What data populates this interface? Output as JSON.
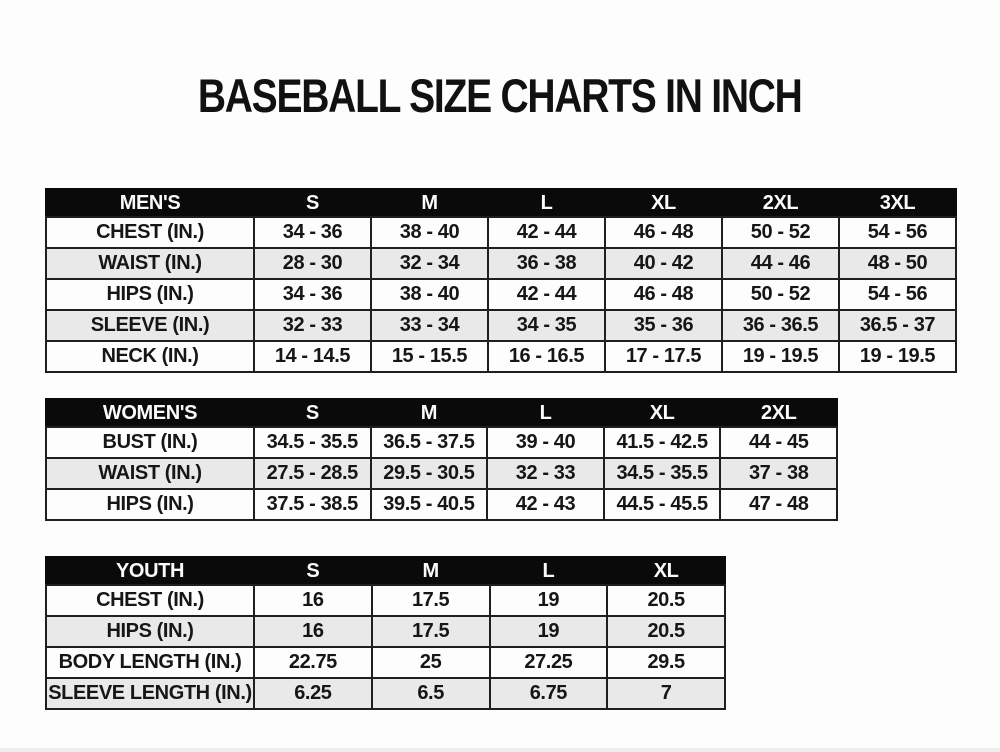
{
  "page": {
    "title": "BASEBALL SIZE CHARTS IN INCH"
  },
  "colors": {
    "header_bg": "#0a0a0a",
    "header_text": "#fafafa",
    "row_bg": "#fdfdfd",
    "row_alt_bg": "#e9e9e9",
    "border": "#1f1f1f",
    "text": "#161616",
    "page_bg": "#fdfdfd"
  },
  "tables": [
    {
      "id": "mens",
      "header_label": "MEN'S",
      "columns": [
        "S",
        "M",
        "L",
        "XL",
        "2XL",
        "3XL"
      ],
      "rows": [
        {
          "label": "CHEST (IN.)",
          "values": [
            "34 - 36",
            "38 - 40",
            "42 - 44",
            "46 - 48",
            "50 - 52",
            "54 - 56"
          ]
        },
        {
          "label": "WAIST (IN.)",
          "values": [
            "28 - 30",
            "32 - 34",
            "36 - 38",
            "40 - 42",
            "44 - 46",
            "48 - 50"
          ]
        },
        {
          "label": "HIPS (IN.)",
          "values": [
            "34 - 36",
            "38 - 40",
            "42 - 44",
            "46 - 48",
            "50 - 52",
            "54 - 56"
          ]
        },
        {
          "label": "SLEEVE (IN.)",
          "values": [
            "32 - 33",
            "33 - 34",
            "34 - 35",
            "35 - 36",
            "36 - 36.5",
            "36.5 - 37"
          ]
        },
        {
          "label": "NECK (IN.)",
          "values": [
            "14 - 14.5",
            "15 - 15.5",
            "16 - 16.5",
            "17 - 17.5",
            "19 - 19.5",
            "19 - 19.5"
          ]
        }
      ]
    },
    {
      "id": "womens",
      "header_label": "WOMEN'S",
      "columns": [
        "S",
        "M",
        "L",
        "XL",
        "2XL"
      ],
      "rows": [
        {
          "label": "BUST (IN.)",
          "values": [
            "34.5 - 35.5",
            "36.5 - 37.5",
            "39 - 40",
            "41.5 - 42.5",
            "44 - 45"
          ]
        },
        {
          "label": "WAIST (IN.)",
          "values": [
            "27.5 - 28.5",
            "29.5 - 30.5",
            "32 - 33",
            "34.5 - 35.5",
            "37 - 38"
          ]
        },
        {
          "label": "HIPS (IN.)",
          "values": [
            "37.5 - 38.5",
            "39.5 - 40.5",
            "42 - 43",
            "44.5 - 45.5",
            "47 - 48"
          ]
        }
      ]
    },
    {
      "id": "youth",
      "header_label": "YOUTH",
      "columns": [
        "S",
        "M",
        "L",
        "XL"
      ],
      "rows": [
        {
          "label": "CHEST (IN.)",
          "values": [
            "16",
            "17.5",
            "19",
            "20.5"
          ]
        },
        {
          "label": "HIPS (IN.)",
          "values": [
            "16",
            "17.5",
            "19",
            "20.5"
          ]
        },
        {
          "label": "BODY LENGTH (IN.)",
          "values": [
            "22.75",
            "25",
            "27.25",
            "29.5"
          ]
        },
        {
          "label": "SLEEVE LENGTH (IN.)",
          "values": [
            "6.25",
            "6.5",
            "6.75",
            "7"
          ]
        }
      ]
    }
  ]
}
